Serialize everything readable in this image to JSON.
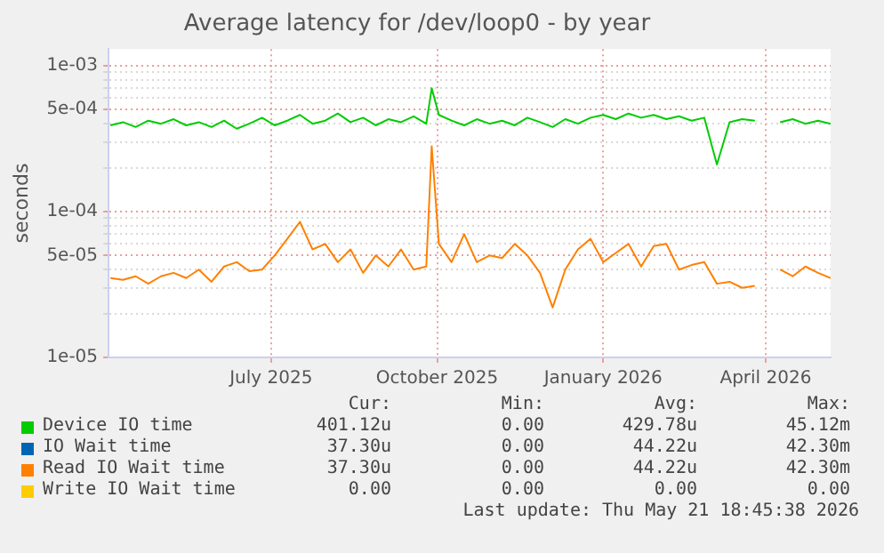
{
  "chart_data": {
    "type": "line",
    "title": "Average latency for /dev/loop0 - by year",
    "ylabel": "seconds",
    "log": "y",
    "grid": true,
    "legend": "bottom",
    "marker": "none",
    "line_style": "solid",
    "x": [
      "2025-04-03",
      "2025-04-10",
      "2025-04-17",
      "2025-04-24",
      "2025-05-01",
      "2025-05-08",
      "2025-05-15",
      "2025-05-22",
      "2025-05-29",
      "2025-06-05",
      "2025-06-12",
      "2025-06-19",
      "2025-06-26",
      "2025-07-03",
      "2025-07-10",
      "2025-07-17",
      "2025-07-24",
      "2025-07-31",
      "2025-08-07",
      "2025-08-14",
      "2025-08-21",
      "2025-08-28",
      "2025-09-04",
      "2025-09-11",
      "2025-09-18",
      "2025-09-25",
      "2025-09-28",
      "2025-10-02",
      "2025-10-09",
      "2025-10-16",
      "2025-10-23",
      "2025-10-30",
      "2025-11-06",
      "2025-11-13",
      "2025-11-20",
      "2025-11-27",
      "2025-12-04",
      "2025-12-11",
      "2025-12-18",
      "2025-12-25",
      "2026-01-01",
      "2026-01-08",
      "2026-01-15",
      "2026-01-22",
      "2026-01-29",
      "2026-02-05",
      "2026-02-12",
      "2026-02-19",
      "2026-02-26",
      "2026-03-05",
      "2026-03-12",
      "2026-03-19",
      "2026-03-26",
      "2026-04-02",
      "2026-04-09",
      "2026-04-16",
      "2026-04-23",
      "2026-04-30",
      "2026-05-07"
    ],
    "series": [
      {
        "name": "Device IO time",
        "color": "#00cc00",
        "values": [
          0.00039,
          0.00041,
          0.00038,
          0.00042,
          0.0004,
          0.00043,
          0.00039,
          0.00041,
          0.00038,
          0.00042,
          0.00037,
          0.0004,
          0.00044,
          0.00039,
          0.00042,
          0.00046,
          0.0004,
          0.00042,
          0.00047,
          0.00041,
          0.00044,
          0.00039,
          0.00043,
          0.00041,
          0.00045,
          0.0004,
          0.0007,
          0.00046,
          0.00042,
          0.00039,
          0.00043,
          0.0004,
          0.00042,
          0.00039,
          0.00044,
          0.00041,
          0.00038,
          0.00043,
          0.0004,
          0.00044,
          0.00046,
          0.00043,
          0.00047,
          0.00044,
          0.00046,
          0.00043,
          0.00045,
          0.00042,
          0.00044,
          0.00021,
          0.00041,
          0.00043,
          0.00042,
          null,
          0.00041,
          0.00043,
          0.0004,
          0.00042,
          0.0004
        ]
      },
      {
        "name": "IO Wait time",
        "color": "#0066b3",
        "values": [
          null,
          null,
          null,
          null,
          null,
          null,
          null,
          null,
          null,
          null,
          null,
          null,
          null,
          null,
          null,
          null,
          null,
          null,
          null,
          null,
          null,
          null,
          null,
          null,
          null,
          null,
          null,
          null,
          null,
          null,
          null,
          null,
          null,
          null,
          null,
          null,
          null,
          null,
          null,
          null,
          null,
          null,
          null,
          null,
          null,
          null,
          null,
          null,
          null,
          null,
          null,
          null,
          null,
          null,
          null,
          null,
          null,
          null,
          null
        ]
      },
      {
        "name": "Read IO Wait time",
        "color": "#ff8000",
        "values": [
          3.5e-05,
          3.4e-05,
          3.6e-05,
          3.2e-05,
          3.6e-05,
          3.8e-05,
          3.5e-05,
          4e-05,
          3.3e-05,
          4.2e-05,
          4.5e-05,
          3.9e-05,
          4e-05,
          5e-05,
          6.5e-05,
          8.5e-05,
          5.5e-05,
          6e-05,
          4.5e-05,
          5.5e-05,
          3.8e-05,
          5e-05,
          4.2e-05,
          5.5e-05,
          4e-05,
          4.2e-05,
          0.00028,
          6e-05,
          4.5e-05,
          7e-05,
          4.5e-05,
          5e-05,
          4.8e-05,
          6e-05,
          5e-05,
          3.8e-05,
          2.2e-05,
          4e-05,
          5.5e-05,
          6.5e-05,
          4.5e-05,
          5.2e-05,
          6e-05,
          4.2e-05,
          5.8e-05,
          6e-05,
          4e-05,
          4.3e-05,
          4.5e-05,
          3.2e-05,
          3.3e-05,
          3e-05,
          3.1e-05,
          null,
          4e-05,
          3.6e-05,
          4.2e-05,
          3.8e-05,
          3.5e-05
        ]
      },
      {
        "name": "Write IO Wait time",
        "color": "#ffcc00",
        "values": [
          null,
          null,
          null,
          null,
          null,
          null,
          null,
          null,
          null,
          null,
          null,
          null,
          null,
          null,
          null,
          null,
          null,
          null,
          null,
          null,
          null,
          null,
          null,
          null,
          null,
          null,
          null,
          null,
          null,
          null,
          null,
          null,
          null,
          null,
          null,
          null,
          null,
          null,
          null,
          null,
          null,
          null,
          null,
          null,
          null,
          null,
          null,
          null,
          null,
          null,
          null,
          null,
          null,
          null,
          null,
          null,
          null,
          null,
          null
        ]
      }
    ],
    "xlim": [
      "2025-04-02",
      "2026-05-07"
    ],
    "xticks": [
      {
        "value": "2025-07-01",
        "label": "July 2025"
      },
      {
        "value": "2025-10-01",
        "label": "October 2025"
      },
      {
        "value": "2026-01-01",
        "label": "January 2026"
      },
      {
        "value": "2026-04-01",
        "label": "April 2026"
      }
    ],
    "ylim": [
      1e-05,
      0.0013
    ],
    "yticks": [
      {
        "value": 1e-05,
        "label": "1e-05"
      },
      {
        "value": 2e-05,
        "label": null
      },
      {
        "value": 3e-05,
        "label": null
      },
      {
        "value": 4e-05,
        "label": null
      },
      {
        "value": 5e-05,
        "label": "5e-05"
      },
      {
        "value": 6e-05,
        "label": null
      },
      {
        "value": 7e-05,
        "label": null
      },
      {
        "value": 8e-05,
        "label": null
      },
      {
        "value": 9e-05,
        "label": null
      },
      {
        "value": 0.0001,
        "label": "1e-04"
      },
      {
        "value": 0.0002,
        "label": null
      },
      {
        "value": 0.0003,
        "label": null
      },
      {
        "value": 0.0004,
        "label": null
      },
      {
        "value": 0.0005,
        "label": "5e-04"
      },
      {
        "value": 0.0006,
        "label": null
      },
      {
        "value": 0.0007,
        "label": null
      },
      {
        "value": 0.0008,
        "label": null
      },
      {
        "value": 0.0009,
        "label": null
      },
      {
        "value": 0.001,
        "label": "1e-03"
      }
    ],
    "annotations": [
      "Cur:",
      "Min:",
      "Avg:",
      "Max:",
      "401.12u",
      "0.00",
      "429.78u",
      "45.12m",
      "37.30u",
      "0.00",
      "44.22u",
      "42.30m",
      "37.30u",
      "0.00",
      "44.22u",
      "42.30m",
      "0.00",
      "0.00",
      "0.00",
      "0.00",
      "Last update: Thu May 21 18:45:38 2026"
    ]
  }
}
